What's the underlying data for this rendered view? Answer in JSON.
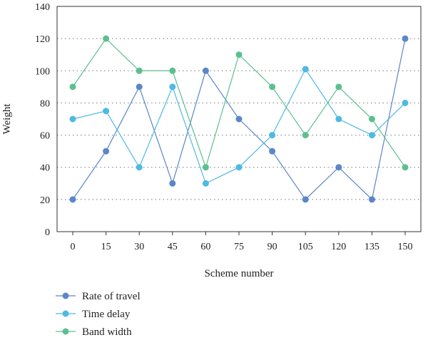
{
  "chart_data": {
    "type": "line",
    "xlabel": "Scheme number",
    "ylabel": "Weight",
    "x": [
      0,
      15,
      30,
      45,
      60,
      75,
      90,
      105,
      120,
      135,
      150
    ],
    "ylim": [
      0,
      140
    ],
    "yticks": [
      0,
      20,
      40,
      60,
      80,
      100,
      120,
      140
    ],
    "grid": "horizontal dotted",
    "legend_position": "bottom-left",
    "series": [
      {
        "name": "Rate of travel",
        "color": "#5b86c8",
        "values": [
          20,
          50,
          90,
          30,
          100,
          70,
          50,
          20,
          40,
          20,
          120
        ]
      },
      {
        "name": "Time delay",
        "color": "#4fb9e3",
        "values": [
          70,
          75,
          40,
          90,
          30,
          40,
          60,
          101,
          70,
          60,
          80
        ]
      },
      {
        "name": "Band width",
        "color": "#5dbf8f",
        "values": [
          90,
          120,
          100,
          100,
          40,
          110,
          90,
          60,
          90,
          70,
          40
        ]
      }
    ]
  }
}
